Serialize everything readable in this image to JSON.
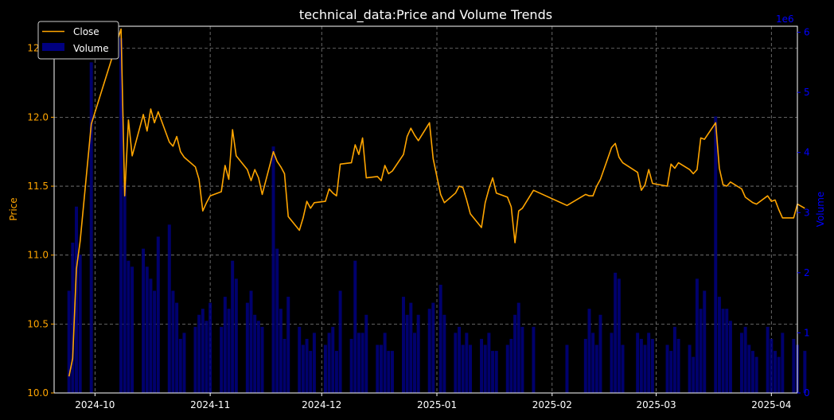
{
  "chart_data": {
    "type": "bar+line",
    "title": "technical_data:Price and Volume Trends",
    "xlabel": "",
    "ylabel_left": "Price",
    "ylabel_right": "Volume",
    "right_axis_multiplier": "1e6",
    "x_ticks": [
      "2024-10",
      "2024-11",
      "2024-12",
      "2025-01",
      "2025-02",
      "2025-03",
      "2025-04"
    ],
    "x_range": [
      "2024-09-20",
      "2025-04-08"
    ],
    "y_left_ticks": [
      "10.0",
      "10.5",
      "11.0",
      "11.5",
      "12.0",
      "12.5"
    ],
    "y_left_range": [
      10.0,
      12.66
    ],
    "y_right_ticks": [
      "0",
      "1",
      "2",
      "3",
      "4",
      "5",
      "6"
    ],
    "y_right_range": [
      0,
      6.1
    ],
    "grid": true,
    "legend_position": "top-left",
    "legend": [
      {
        "label": "Close",
        "kind": "line"
      },
      {
        "label": "Volume",
        "kind": "bar"
      }
    ],
    "colors": {
      "close": "#ffa500",
      "volume": "#000080",
      "right_axis": "#0000ff",
      "left_axis": "#ffa500",
      "grid": "#808080",
      "background": "#000000"
    },
    "series": [
      {
        "name": "Close",
        "points": [
          [
            "2024-09-24",
            10.12
          ],
          [
            "2024-09-25",
            10.25
          ],
          [
            "2024-09-26",
            10.9
          ],
          [
            "2024-09-27",
            11.1
          ],
          [
            "2024-09-30",
            11.95
          ],
          [
            "2024-10-08",
            12.64
          ],
          [
            "2024-10-09",
            11.43
          ],
          [
            "2024-10-10",
            11.98
          ],
          [
            "2024-10-11",
            11.72
          ],
          [
            "2024-10-14",
            12.02
          ],
          [
            "2024-10-15",
            11.9
          ],
          [
            "2024-10-16",
            12.06
          ],
          [
            "2024-10-17",
            11.96
          ],
          [
            "2024-10-18",
            12.04
          ],
          [
            "2024-10-21",
            11.82
          ],
          [
            "2024-10-22",
            11.79
          ],
          [
            "2024-10-23",
            11.86
          ],
          [
            "2024-10-24",
            11.75
          ],
          [
            "2024-10-25",
            11.71
          ],
          [
            "2024-10-28",
            11.64
          ],
          [
            "2024-10-29",
            11.55
          ],
          [
            "2024-10-30",
            11.32
          ],
          [
            "2024-10-31",
            11.38
          ],
          [
            "2024-11-01",
            11.43
          ],
          [
            "2024-11-04",
            11.46
          ],
          [
            "2024-11-05",
            11.65
          ],
          [
            "2024-11-06",
            11.55
          ],
          [
            "2024-11-07",
            11.91
          ],
          [
            "2024-11-08",
            11.72
          ],
          [
            "2024-11-11",
            11.62
          ],
          [
            "2024-11-12",
            11.54
          ],
          [
            "2024-11-13",
            11.62
          ],
          [
            "2024-11-14",
            11.56
          ],
          [
            "2024-11-15",
            11.44
          ],
          [
            "2024-11-18",
            11.75
          ],
          [
            "2024-11-19",
            11.68
          ],
          [
            "2024-11-20",
            11.64
          ],
          [
            "2024-11-21",
            11.59
          ],
          [
            "2024-11-22",
            11.28
          ],
          [
            "2024-11-25",
            11.18
          ],
          [
            "2024-11-26",
            11.27
          ],
          [
            "2024-11-27",
            11.39
          ],
          [
            "2024-11-28",
            11.34
          ],
          [
            "2024-11-29",
            11.38
          ],
          [
            "2024-12-02",
            11.39
          ],
          [
            "2024-12-03",
            11.48
          ],
          [
            "2024-12-04",
            11.45
          ],
          [
            "2024-12-05",
            11.43
          ],
          [
            "2024-12-06",
            11.66
          ],
          [
            "2024-12-09",
            11.67
          ],
          [
            "2024-12-10",
            11.8
          ],
          [
            "2024-12-11",
            11.73
          ],
          [
            "2024-12-12",
            11.85
          ],
          [
            "2024-12-13",
            11.56
          ],
          [
            "2024-12-16",
            11.57
          ],
          [
            "2024-12-17",
            11.54
          ],
          [
            "2024-12-18",
            11.65
          ],
          [
            "2024-12-19",
            11.59
          ],
          [
            "2024-12-20",
            11.61
          ],
          [
            "2024-12-23",
            11.73
          ],
          [
            "2024-12-24",
            11.86
          ],
          [
            "2024-12-25",
            11.92
          ],
          [
            "2024-12-26",
            11.87
          ],
          [
            "2024-12-27",
            11.83
          ],
          [
            "2024-12-30",
            11.96
          ],
          [
            "2024-12-31",
            11.7
          ],
          [
            "2025-01-02",
            11.44
          ],
          [
            "2025-01-03",
            11.38
          ],
          [
            "2025-01-06",
            11.45
          ],
          [
            "2025-01-07",
            11.5
          ],
          [
            "2025-01-08",
            11.49
          ],
          [
            "2025-01-09",
            11.4
          ],
          [
            "2025-01-10",
            11.3
          ],
          [
            "2025-01-13",
            11.2
          ],
          [
            "2025-01-14",
            11.38
          ],
          [
            "2025-01-15",
            11.48
          ],
          [
            "2025-01-16",
            11.56
          ],
          [
            "2025-01-17",
            11.45
          ],
          [
            "2025-01-20",
            11.42
          ],
          [
            "2025-01-21",
            11.35
          ],
          [
            "2025-01-22",
            11.09
          ],
          [
            "2025-01-23",
            11.32
          ],
          [
            "2025-01-24",
            11.34
          ],
          [
            "2025-01-27",
            11.47
          ],
          [
            "2025-02-05",
            11.36
          ],
          [
            "2025-02-10",
            11.44
          ],
          [
            "2025-02-11",
            11.43
          ],
          [
            "2025-02-12",
            11.43
          ],
          [
            "2025-02-13",
            11.5
          ],
          [
            "2025-02-14",
            11.55
          ],
          [
            "2025-02-17",
            11.78
          ],
          [
            "2025-02-18",
            11.81
          ],
          [
            "2025-02-19",
            11.71
          ],
          [
            "2025-02-20",
            11.67
          ],
          [
            "2025-02-24",
            11.6
          ],
          [
            "2025-02-25",
            11.47
          ],
          [
            "2025-02-26",
            11.51
          ],
          [
            "2025-02-27",
            11.62
          ],
          [
            "2025-02-28",
            11.52
          ],
          [
            "2025-03-04",
            11.5
          ],
          [
            "2025-03-05",
            11.66
          ],
          [
            "2025-03-06",
            11.63
          ],
          [
            "2025-03-07",
            11.67
          ],
          [
            "2025-03-10",
            11.62
          ],
          [
            "2025-03-11",
            11.59
          ],
          [
            "2025-03-12",
            11.62
          ],
          [
            "2025-03-13",
            11.85
          ],
          [
            "2025-03-14",
            11.84
          ],
          [
            "2025-03-17",
            11.96
          ],
          [
            "2025-03-18",
            11.63
          ],
          [
            "2025-03-19",
            11.51
          ],
          [
            "2025-03-20",
            11.5
          ],
          [
            "2025-03-21",
            11.53
          ],
          [
            "2025-03-24",
            11.48
          ],
          [
            "2025-03-25",
            11.42
          ],
          [
            "2025-03-26",
            11.4
          ],
          [
            "2025-03-27",
            11.38
          ],
          [
            "2025-03-28",
            11.37
          ],
          [
            "2025-03-31",
            11.43
          ],
          [
            "2025-04-01",
            11.39
          ],
          [
            "2025-04-02",
            11.4
          ],
          [
            "2025-04-03",
            11.33
          ],
          [
            "2025-04-04",
            11.27
          ],
          [
            "2025-04-07",
            11.27
          ],
          [
            "2025-04-08",
            11.37
          ],
          [
            "2025-04-10",
            11.34
          ]
        ]
      },
      {
        "name": "Volume",
        "points": [
          [
            "2024-09-24",
            1.7
          ],
          [
            "2024-09-25",
            2.5
          ],
          [
            "2024-09-26",
            3.1
          ],
          [
            "2024-09-27",
            2.3
          ],
          [
            "2024-09-30",
            5.5
          ],
          [
            "2024-10-08",
            5.9
          ],
          [
            "2024-10-09",
            3.5
          ],
          [
            "2024-10-10",
            2.2
          ],
          [
            "2024-10-11",
            2.1
          ],
          [
            "2024-10-14",
            2.4
          ],
          [
            "2024-10-15",
            2.1
          ],
          [
            "2024-10-16",
            1.9
          ],
          [
            "2024-10-17",
            1.7
          ],
          [
            "2024-10-18",
            2.6
          ],
          [
            "2024-10-21",
            2.8
          ],
          [
            "2024-10-22",
            1.7
          ],
          [
            "2024-10-23",
            1.5
          ],
          [
            "2024-10-24",
            0.9
          ],
          [
            "2024-10-25",
            1.0
          ],
          [
            "2024-10-28",
            1.1
          ],
          [
            "2024-10-29",
            1.3
          ],
          [
            "2024-10-30",
            1.4
          ],
          [
            "2024-10-31",
            1.2
          ],
          [
            "2024-11-01",
            1.5
          ],
          [
            "2024-11-04",
            1.1
          ],
          [
            "2024-11-05",
            1.6
          ],
          [
            "2024-11-06",
            1.4
          ],
          [
            "2024-11-07",
            2.2
          ],
          [
            "2024-11-08",
            1.9
          ],
          [
            "2024-11-11",
            1.5
          ],
          [
            "2024-11-12",
            1.7
          ],
          [
            "2024-11-13",
            1.3
          ],
          [
            "2024-11-14",
            1.2
          ],
          [
            "2024-11-15",
            1.1
          ],
          [
            "2024-11-18",
            4.1
          ],
          [
            "2024-11-19",
            2.4
          ],
          [
            "2024-11-20",
            1.4
          ],
          [
            "2024-11-21",
            0.9
          ],
          [
            "2024-11-22",
            1.6
          ],
          [
            "2024-11-25",
            1.1
          ],
          [
            "2024-11-26",
            0.8
          ],
          [
            "2024-11-27",
            0.9
          ],
          [
            "2024-11-28",
            0.7
          ],
          [
            "2024-11-29",
            1.0
          ],
          [
            "2024-12-02",
            0.8
          ],
          [
            "2024-12-03",
            1.0
          ],
          [
            "2024-12-04",
            1.1
          ],
          [
            "2024-12-05",
            0.7
          ],
          [
            "2024-12-06",
            1.7
          ],
          [
            "2024-12-09",
            0.9
          ],
          [
            "2024-12-10",
            2.2
          ],
          [
            "2024-12-11",
            1.0
          ],
          [
            "2024-12-12",
            1.0
          ],
          [
            "2024-12-13",
            1.3
          ],
          [
            "2024-12-16",
            0.8
          ],
          [
            "2024-12-17",
            0.8
          ],
          [
            "2024-12-18",
            1.0
          ],
          [
            "2024-12-19",
            0.7
          ],
          [
            "2024-12-20",
            0.7
          ],
          [
            "2024-12-23",
            1.6
          ],
          [
            "2024-12-24",
            1.3
          ],
          [
            "2024-12-25",
            1.5
          ],
          [
            "2024-12-26",
            1.0
          ],
          [
            "2024-12-27",
            1.3
          ],
          [
            "2024-12-30",
            1.4
          ],
          [
            "2024-12-31",
            1.5
          ],
          [
            "2025-01-02",
            1.8
          ],
          [
            "2025-01-03",
            1.3
          ],
          [
            "2025-01-06",
            1.0
          ],
          [
            "2025-01-07",
            1.1
          ],
          [
            "2025-01-08",
            0.8
          ],
          [
            "2025-01-09",
            1.0
          ],
          [
            "2025-01-10",
            0.8
          ],
          [
            "2025-01-13",
            0.9
          ],
          [
            "2025-01-14",
            0.8
          ],
          [
            "2025-01-15",
            1.0
          ],
          [
            "2025-01-16",
            0.7
          ],
          [
            "2025-01-17",
            0.7
          ],
          [
            "2025-01-20",
            0.8
          ],
          [
            "2025-01-21",
            0.9
          ],
          [
            "2025-01-22",
            1.3
          ],
          [
            "2025-01-23",
            1.5
          ],
          [
            "2025-01-24",
            1.1
          ],
          [
            "2025-01-27",
            1.1
          ],
          [
            "2025-02-05",
            0.8
          ],
          [
            "2025-02-10",
            0.9
          ],
          [
            "2025-02-11",
            1.4
          ],
          [
            "2025-02-12",
            1.0
          ],
          [
            "2025-02-13",
            0.8
          ],
          [
            "2025-02-14",
            1.3
          ],
          [
            "2025-02-17",
            1.0
          ],
          [
            "2025-02-18",
            2.0
          ],
          [
            "2025-02-19",
            1.9
          ],
          [
            "2025-02-20",
            0.8
          ],
          [
            "2025-02-24",
            1.0
          ],
          [
            "2025-02-25",
            0.9
          ],
          [
            "2025-02-26",
            0.8
          ],
          [
            "2025-02-27",
            1.0
          ],
          [
            "2025-02-28",
            0.9
          ],
          [
            "2025-03-04",
            0.8
          ],
          [
            "2025-03-05",
            0.7
          ],
          [
            "2025-03-06",
            1.1
          ],
          [
            "2025-03-07",
            0.9
          ],
          [
            "2025-03-10",
            0.8
          ],
          [
            "2025-03-11",
            0.6
          ],
          [
            "2025-03-12",
            1.9
          ],
          [
            "2025-03-13",
            1.4
          ],
          [
            "2025-03-14",
            1.7
          ],
          [
            "2025-03-17",
            4.6
          ],
          [
            "2025-03-18",
            1.6
          ],
          [
            "2025-03-19",
            1.4
          ],
          [
            "2025-03-20",
            1.4
          ],
          [
            "2025-03-21",
            1.2
          ],
          [
            "2025-03-24",
            1.0
          ],
          [
            "2025-03-25",
            1.1
          ],
          [
            "2025-03-26",
            0.8
          ],
          [
            "2025-03-27",
            0.7
          ],
          [
            "2025-03-28",
            0.6
          ],
          [
            "2025-03-31",
            1.1
          ],
          [
            "2025-04-01",
            0.9
          ],
          [
            "2025-04-02",
            0.7
          ],
          [
            "2025-04-03",
            0.6
          ],
          [
            "2025-04-04",
            1.0
          ],
          [
            "2025-04-07",
            0.9
          ],
          [
            "2025-04-08",
            0.8
          ],
          [
            "2025-04-10",
            0.7
          ]
        ]
      }
    ]
  }
}
